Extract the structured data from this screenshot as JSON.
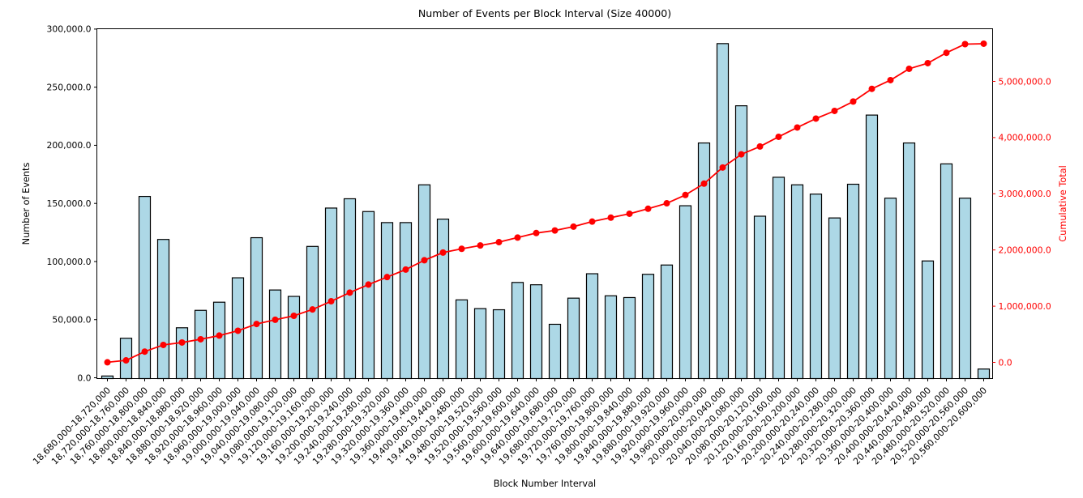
{
  "figure": {
    "background": "#ffffff",
    "accent_bar_fill": "#ADD8E6",
    "accent_bar_edge": "#000000",
    "accent_line": "#FF0000",
    "axis_color": "#000000"
  },
  "chart_data": {
    "type": "bar",
    "title": "Number of Events per Block Interval (Size 40000)",
    "xlabel": "Block Number Interval",
    "ylabel_left": "Number of Events",
    "ylabel_right": "Cumulative Total",
    "grid": false,
    "legend": "none",
    "background": "#ffffff",
    "categories": [
      "18,680,000-18,720,000",
      "18,720,000-18,760,000",
      "18,760,000-18,800,000",
      "18,800,000-18,840,000",
      "18,840,000-18,880,000",
      "18,880,000-18,920,000",
      "18,920,000-18,960,000",
      "18,960,000-19,000,000",
      "19,000,000-19,040,000",
      "19,040,000-19,080,000",
      "19,080,000-19,120,000",
      "19,120,000-19,160,000",
      "19,160,000-19,200,000",
      "19,200,000-19,240,000",
      "19,240,000-19,280,000",
      "19,280,000-19,320,000",
      "19,320,000-19,360,000",
      "19,360,000-19,400,000",
      "19,400,000-19,440,000",
      "19,440,000-19,480,000",
      "19,480,000-19,520,000",
      "19,520,000-19,560,000",
      "19,560,000-19,600,000",
      "19,600,000-19,640,000",
      "19,640,000-19,680,000",
      "19,680,000-19,720,000",
      "19,720,000-19,760,000",
      "19,760,000-19,800,000",
      "19,800,000-19,840,000",
      "19,840,000-19,880,000",
      "19,880,000-19,920,000",
      "19,920,000-19,960,000",
      "19,960,000-20,000,000",
      "20,000,000-20,040,000",
      "20,040,000-20,080,000",
      "20,080,000-20,120,000",
      "20,120,000-20,160,000",
      "20,160,000-20,200,000",
      "20,200,000-20,240,000",
      "20,240,000-20,280,000",
      "20,280,000-20,320,000",
      "20,320,000-20,360,000",
      "20,360,000-20,400,000",
      "20,400,000-20,440,000",
      "20,440,000-20,480,000",
      "20,480,000-20,520,000",
      "20,520,000-20,560,000",
      "20,560,000-20,600,000"
    ],
    "series": [
      {
        "name": "Number of Events",
        "type": "bar",
        "axis": "left",
        "fill": "#ADD8E6",
        "edge": "#000000",
        "values": [
          1500,
          34000,
          156000,
          119000,
          43000,
          58000,
          65000,
          86000,
          120500,
          75500,
          70000,
          113000,
          146000,
          154000,
          143000,
          133500,
          133500,
          166000,
          136500,
          67000,
          59500,
          58500,
          82000,
          80000,
          46000,
          68500,
          89500,
          70500,
          69000,
          89000,
          97000,
          148000,
          202000,
          287500,
          234000,
          139000,
          172500,
          166000,
          158000,
          137500,
          166500,
          226000,
          154500,
          202000,
          100500,
          184000,
          154500,
          7500
        ]
      },
      {
        "name": "Cumulative Total",
        "type": "line",
        "axis": "right",
        "color": "#FF0000",
        "marker": "o",
        "values": [
          1500,
          35500,
          191500,
          310500,
          353500,
          411500,
          476500,
          562500,
          683000,
          758500,
          828500,
          941500,
          1087500,
          1241500,
          1384500,
          1518000,
          1651500,
          1817500,
          1954000,
          2021000,
          2080500,
          2139000,
          2221000,
          2301000,
          2347000,
          2415500,
          2505000,
          2575500,
          2644500,
          2733500,
          2830500,
          2978500,
          3180500,
          3468000,
          3702000,
          3841000,
          4013500,
          4179500,
          4337500,
          4475000,
          4641500,
          4867500,
          5022000,
          5224000,
          5324500,
          5508500,
          5663000,
          5670500
        ]
      }
    ],
    "axes": {
      "left": {
        "color": "#000000",
        "range": [
          0,
          300000
        ],
        "ticks": [
          0,
          50000,
          100000,
          150000,
          200000,
          250000,
          300000
        ],
        "tick_labels": [
          "0.0",
          "50,000.0",
          "100,000.0",
          "150,000.0",
          "200,000.0",
          "250,000.0",
          "300,000.0"
        ]
      },
      "right": {
        "color": "#FF0000",
        "range": [
          0,
          5000000
        ],
        "ticks": [
          0,
          1000000,
          2000000,
          3000000,
          4000000,
          5000000
        ],
        "tick_labels": [
          "0.0",
          "1,000,000.0",
          "2,000,000.0",
          "3,000,000.0",
          "4,000,000.0",
          "5,000,000.0"
        ]
      }
    }
  }
}
